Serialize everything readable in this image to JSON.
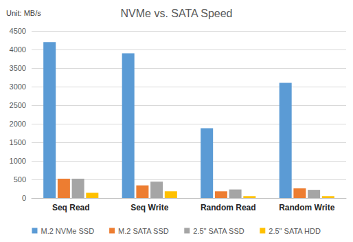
{
  "chart_data": {
    "type": "bar",
    "title": "NVMe vs. SATA Speed",
    "ylabel": "Unit: MB/s",
    "categories": [
      "Seq Read",
      "Seq Write",
      "Random Read",
      "Random Write"
    ],
    "series": [
      {
        "name": "M.2 NVMe SSD",
        "color": "#5b9bd5",
        "values": [
          4200,
          3900,
          1880,
          3100
        ]
      },
      {
        "name": "M.2 SATA SSD",
        "color": "#ed7d31",
        "values": [
          520,
          340,
          180,
          260
        ]
      },
      {
        "name": "2.5\" SATA SSD",
        "color": "#a5a5a5",
        "values": [
          520,
          440,
          230,
          220
        ]
      },
      {
        "name": "2.5\" SATA HDD",
        "color": "#ffc000",
        "values": [
          140,
          180,
          50,
          50
        ]
      }
    ],
    "ylim": [
      0,
      4500
    ],
    "yticks": [
      0,
      500,
      1000,
      1500,
      2000,
      2500,
      3000,
      3500,
      4000,
      4500
    ],
    "grid": true,
    "legend": "bottom"
  }
}
